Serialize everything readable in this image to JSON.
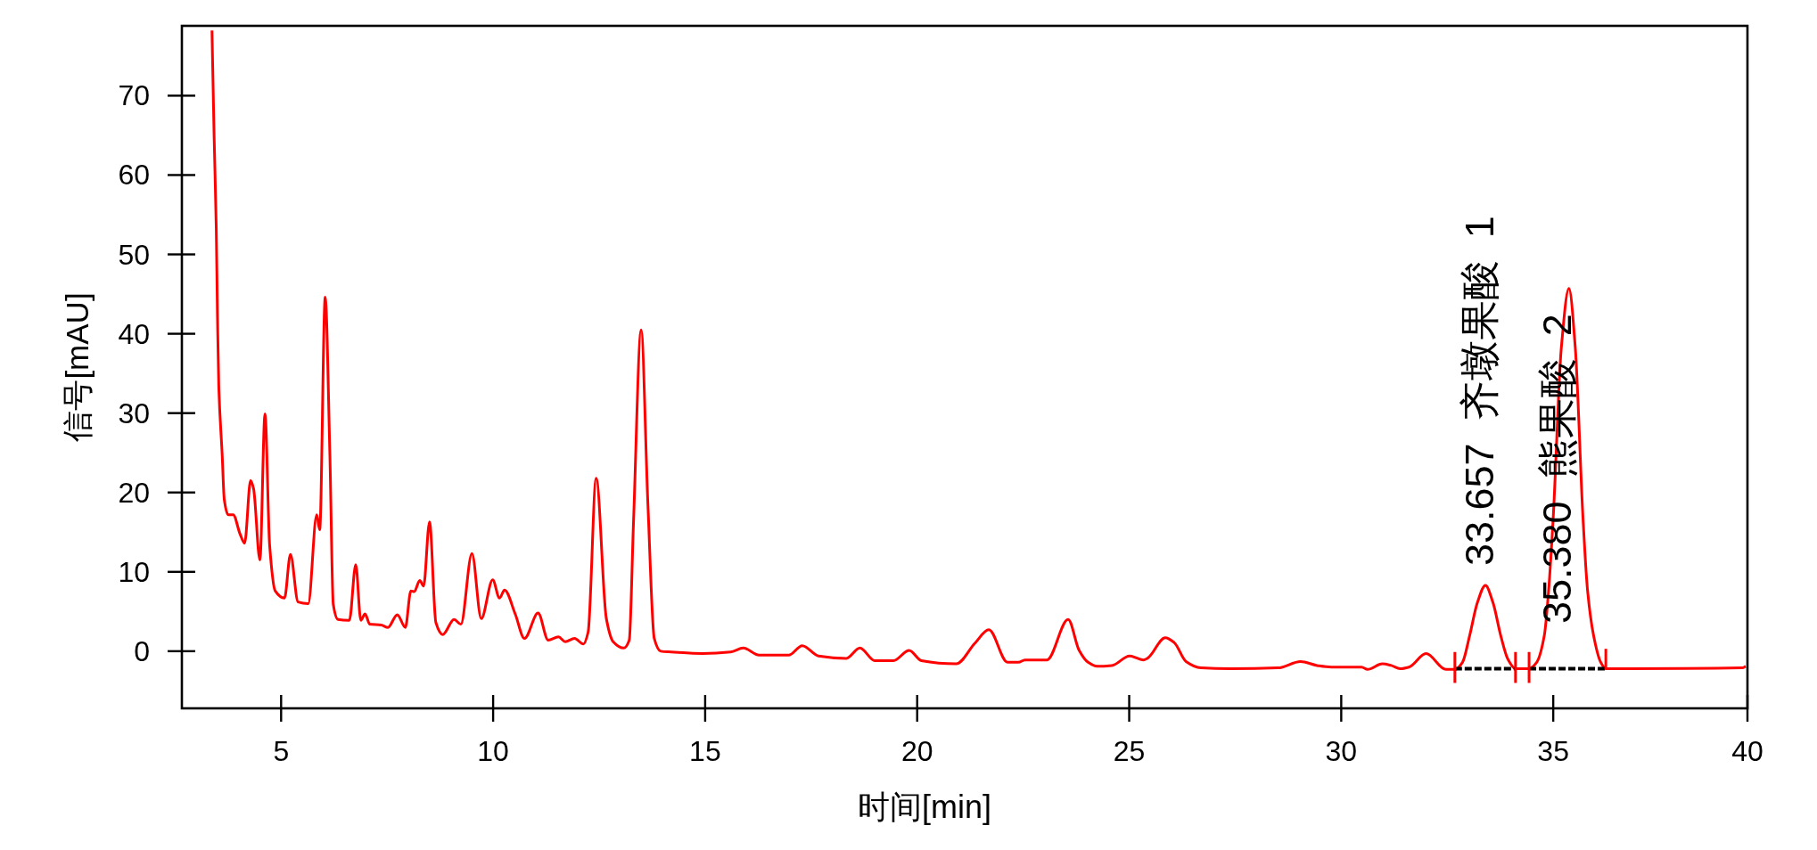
{
  "chart_data": {
    "type": "line",
    "xlabel": "时间[min]",
    "ylabel": "信号[mAU]",
    "xlim": [
      2.66,
      39.58
    ],
    "ylim": [
      -7.2,
      78.8
    ],
    "xticks": [
      5,
      10,
      15,
      20,
      25,
      30,
      35,
      {
        "value": 39.58,
        "label": "40"
      }
    ],
    "yticks": [
      0,
      10,
      20,
      30,
      40,
      50,
      60,
      70
    ],
    "series": [
      {
        "color": "#ff0000",
        "x": [
          3.37,
          3.42,
          3.47,
          3.5,
          3.53,
          3.61,
          3.66,
          3.75,
          3.87,
          4.03,
          4.14,
          4.28,
          4.35,
          4.5,
          4.62,
          4.73,
          4.86,
          5.08,
          5.22,
          5.4,
          5.64,
          5.84,
          5.91,
          6.04,
          6.15,
          6.23,
          6.34,
          6.61,
          6.76,
          6.88,
          6.98,
          7.09,
          7.36,
          7.52,
          7.74,
          7.93,
          8.06,
          8.14,
          8.27,
          8.36,
          8.5,
          8.65,
          8.81,
          9.08,
          9.24,
          9.5,
          9.72,
          9.99,
          10.15,
          10.27,
          10.52,
          10.74,
          11.06,
          11.3,
          11.54,
          11.7,
          11.92,
          12.13,
          12.24,
          12.43,
          12.67,
          12.83,
          13.08,
          13.21,
          13.31,
          13.49,
          13.65,
          13.8,
          13.95,
          14.2,
          14.94,
          15.6,
          15.9,
          16.27,
          16.97,
          17.29,
          17.67,
          18.33,
          18.65,
          19.0,
          19.44,
          19.81,
          20.1,
          20.92,
          21.36,
          21.69,
          22.13,
          22.39,
          22.54,
          23.06,
          23.56,
          23.82,
          24.03,
          24.24,
          24.59,
          25.01,
          25.33,
          25.43,
          25.85,
          26.06,
          26.34,
          26.69,
          27.39,
          28.51,
          29.04,
          29.43,
          29.77,
          30.48,
          30.62,
          30.97,
          31.18,
          31.39,
          31.6,
          32.0,
          32.47,
          32.68,
          32.86,
          33.03,
          33.21,
          33.4,
          33.58,
          33.76,
          33.93,
          34.11,
          34.43,
          34.61,
          34.79,
          34.89,
          35.0,
          35.19,
          35.37,
          35.52,
          35.7,
          35.81,
          35.95,
          36.12,
          36.24,
          39.46,
          39.54
        ],
        "values": [
          78.2,
          64.9,
          53.5,
          42.0,
          33.4,
          24.8,
          19.1,
          17.2,
          17.2,
          14.8,
          13.6,
          21.5,
          20.5,
          11.5,
          29.9,
          13.3,
          7.6,
          6.7,
          12.2,
          6.2,
          6.0,
          17.2,
          15.3,
          44.6,
          24.8,
          5.9,
          4.0,
          3.9,
          10.9,
          3.9,
          4.7,
          3.4,
          3.3,
          3.0,
          4.6,
          3.0,
          7.6,
          7.5,
          8.9,
          8.2,
          16.3,
          3.6,
          2.1,
          4.0,
          3.4,
          12.3,
          4.1,
          9.0,
          6.7,
          7.7,
          4.7,
          1.6,
          4.8,
          1.4,
          1.8,
          1.2,
          1.6,
          0.9,
          2.4,
          21.8,
          4.1,
          1.2,
          0.4,
          1.4,
          16.2,
          40.5,
          18.5,
          1.6,
          0.0,
          -0.1,
          -0.3,
          -0.1,
          0.4,
          -0.5,
          -0.5,
          0.7,
          -0.6,
          -0.9,
          0.4,
          -1.2,
          -1.2,
          0.1,
          -1.2,
          -1.6,
          1.0,
          2.7,
          -1.4,
          -1.4,
          -1.1,
          -1.1,
          4.0,
          0.1,
          -1.4,
          -1.9,
          -1.8,
          -0.6,
          -1.1,
          -0.9,
          1.7,
          1.1,
          -1.3,
          -2.1,
          -2.2,
          -2.1,
          -1.3,
          -1.8,
          -2.0,
          -2.0,
          -2.3,
          -1.6,
          -1.8,
          -2.2,
          -2.0,
          -0.3,
          -2.3,
          -2.3,
          -1.4,
          2.0,
          6.1,
          8.3,
          6.1,
          2.0,
          -1.0,
          -2.2,
          -2.2,
          -1.4,
          2.0,
          7.6,
          16.9,
          38.2,
          45.7,
          38.2,
          16.9,
          7.6,
          2.0,
          -1.4,
          -2.2,
          -2.1,
          -1.9
        ]
      },
      {
        "color": "#000000",
        "line_style": "dashed",
        "x": [
          32.68,
          34.11
        ],
        "values": [
          -2.2,
          -2.2
        ]
      },
      {
        "color": "#000000",
        "line_style": "dashed",
        "x": [
          34.43,
          36.24
        ],
        "values": [
          -2.2,
          -2.2
        ]
      },
      {
        "color": "#ff0000",
        "x": [
          32.68,
          32.68
        ],
        "values": [
          -0.1,
          -4.0
        ]
      },
      {
        "color": "#ff0000",
        "x": [
          34.11,
          34.11
        ],
        "values": [
          -0.1,
          -4.0
        ]
      },
      {
        "color": "#ff0000",
        "x": [
          34.43,
          34.43
        ],
        "values": [
          -0.1,
          -4.0
        ]
      },
      {
        "color": "#ff0000",
        "x": [
          36.24,
          36.24
        ],
        "values": [
          0.3,
          -2.3
        ]
      }
    ],
    "annotations": [
      "33.657  齐墩果酸  1",
      "35.380  熊果酸  2"
    ]
  }
}
